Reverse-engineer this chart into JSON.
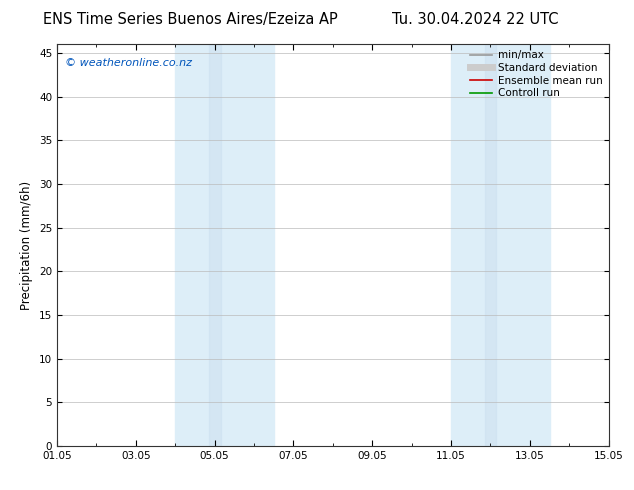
{
  "title_left": "ENS Time Series Buenos Aires/Ezeiza AP",
  "title_right": "Tu. 30.04.2024 22 UTC",
  "ylabel": "Precipitation (mm/6h)",
  "ylim": [
    0,
    46
  ],
  "yticks": [
    0,
    5,
    10,
    15,
    20,
    25,
    30,
    35,
    40,
    45
  ],
  "xlim_start": 0,
  "xlim_end": 14,
  "xtick_labels": [
    "01.05",
    "03.05",
    "05.05",
    "07.05",
    "09.05",
    "11.05",
    "13.05",
    "15.05"
  ],
  "xtick_positions": [
    0,
    2,
    4,
    6,
    8,
    10,
    12,
    14
  ],
  "shaded_bands": [
    {
      "x_start": 3.0,
      "x_end": 5.5,
      "divider": 4.0
    },
    {
      "x_start": 10.0,
      "x_end": 12.5,
      "divider": 11.0
    }
  ],
  "shade_color_light": "#ddeef8",
  "shade_color_dark": "#cce0f0",
  "copyright_text": "© weatheronline.co.nz",
  "copyright_color": "#0055bb",
  "background_color": "#ffffff",
  "plot_bg_color": "#ffffff",
  "grid_color": "#bbbbbb",
  "legend_items": [
    {
      "label": "min/max",
      "color": "#999999",
      "lw": 1.2,
      "type": "line"
    },
    {
      "label": "Standard deviation",
      "color": "#cccccc",
      "lw": 5,
      "type": "line"
    },
    {
      "label": "Ensemble mean run",
      "color": "#cc0000",
      "lw": 1.2,
      "type": "line"
    },
    {
      "label": "Controll run",
      "color": "#009900",
      "lw": 1.2,
      "type": "line"
    }
  ],
  "title_fontsize": 10.5,
  "tick_fontsize": 7.5,
  "ylabel_fontsize": 8.5,
  "legend_fontsize": 7.5,
  "copyright_fontsize": 8
}
